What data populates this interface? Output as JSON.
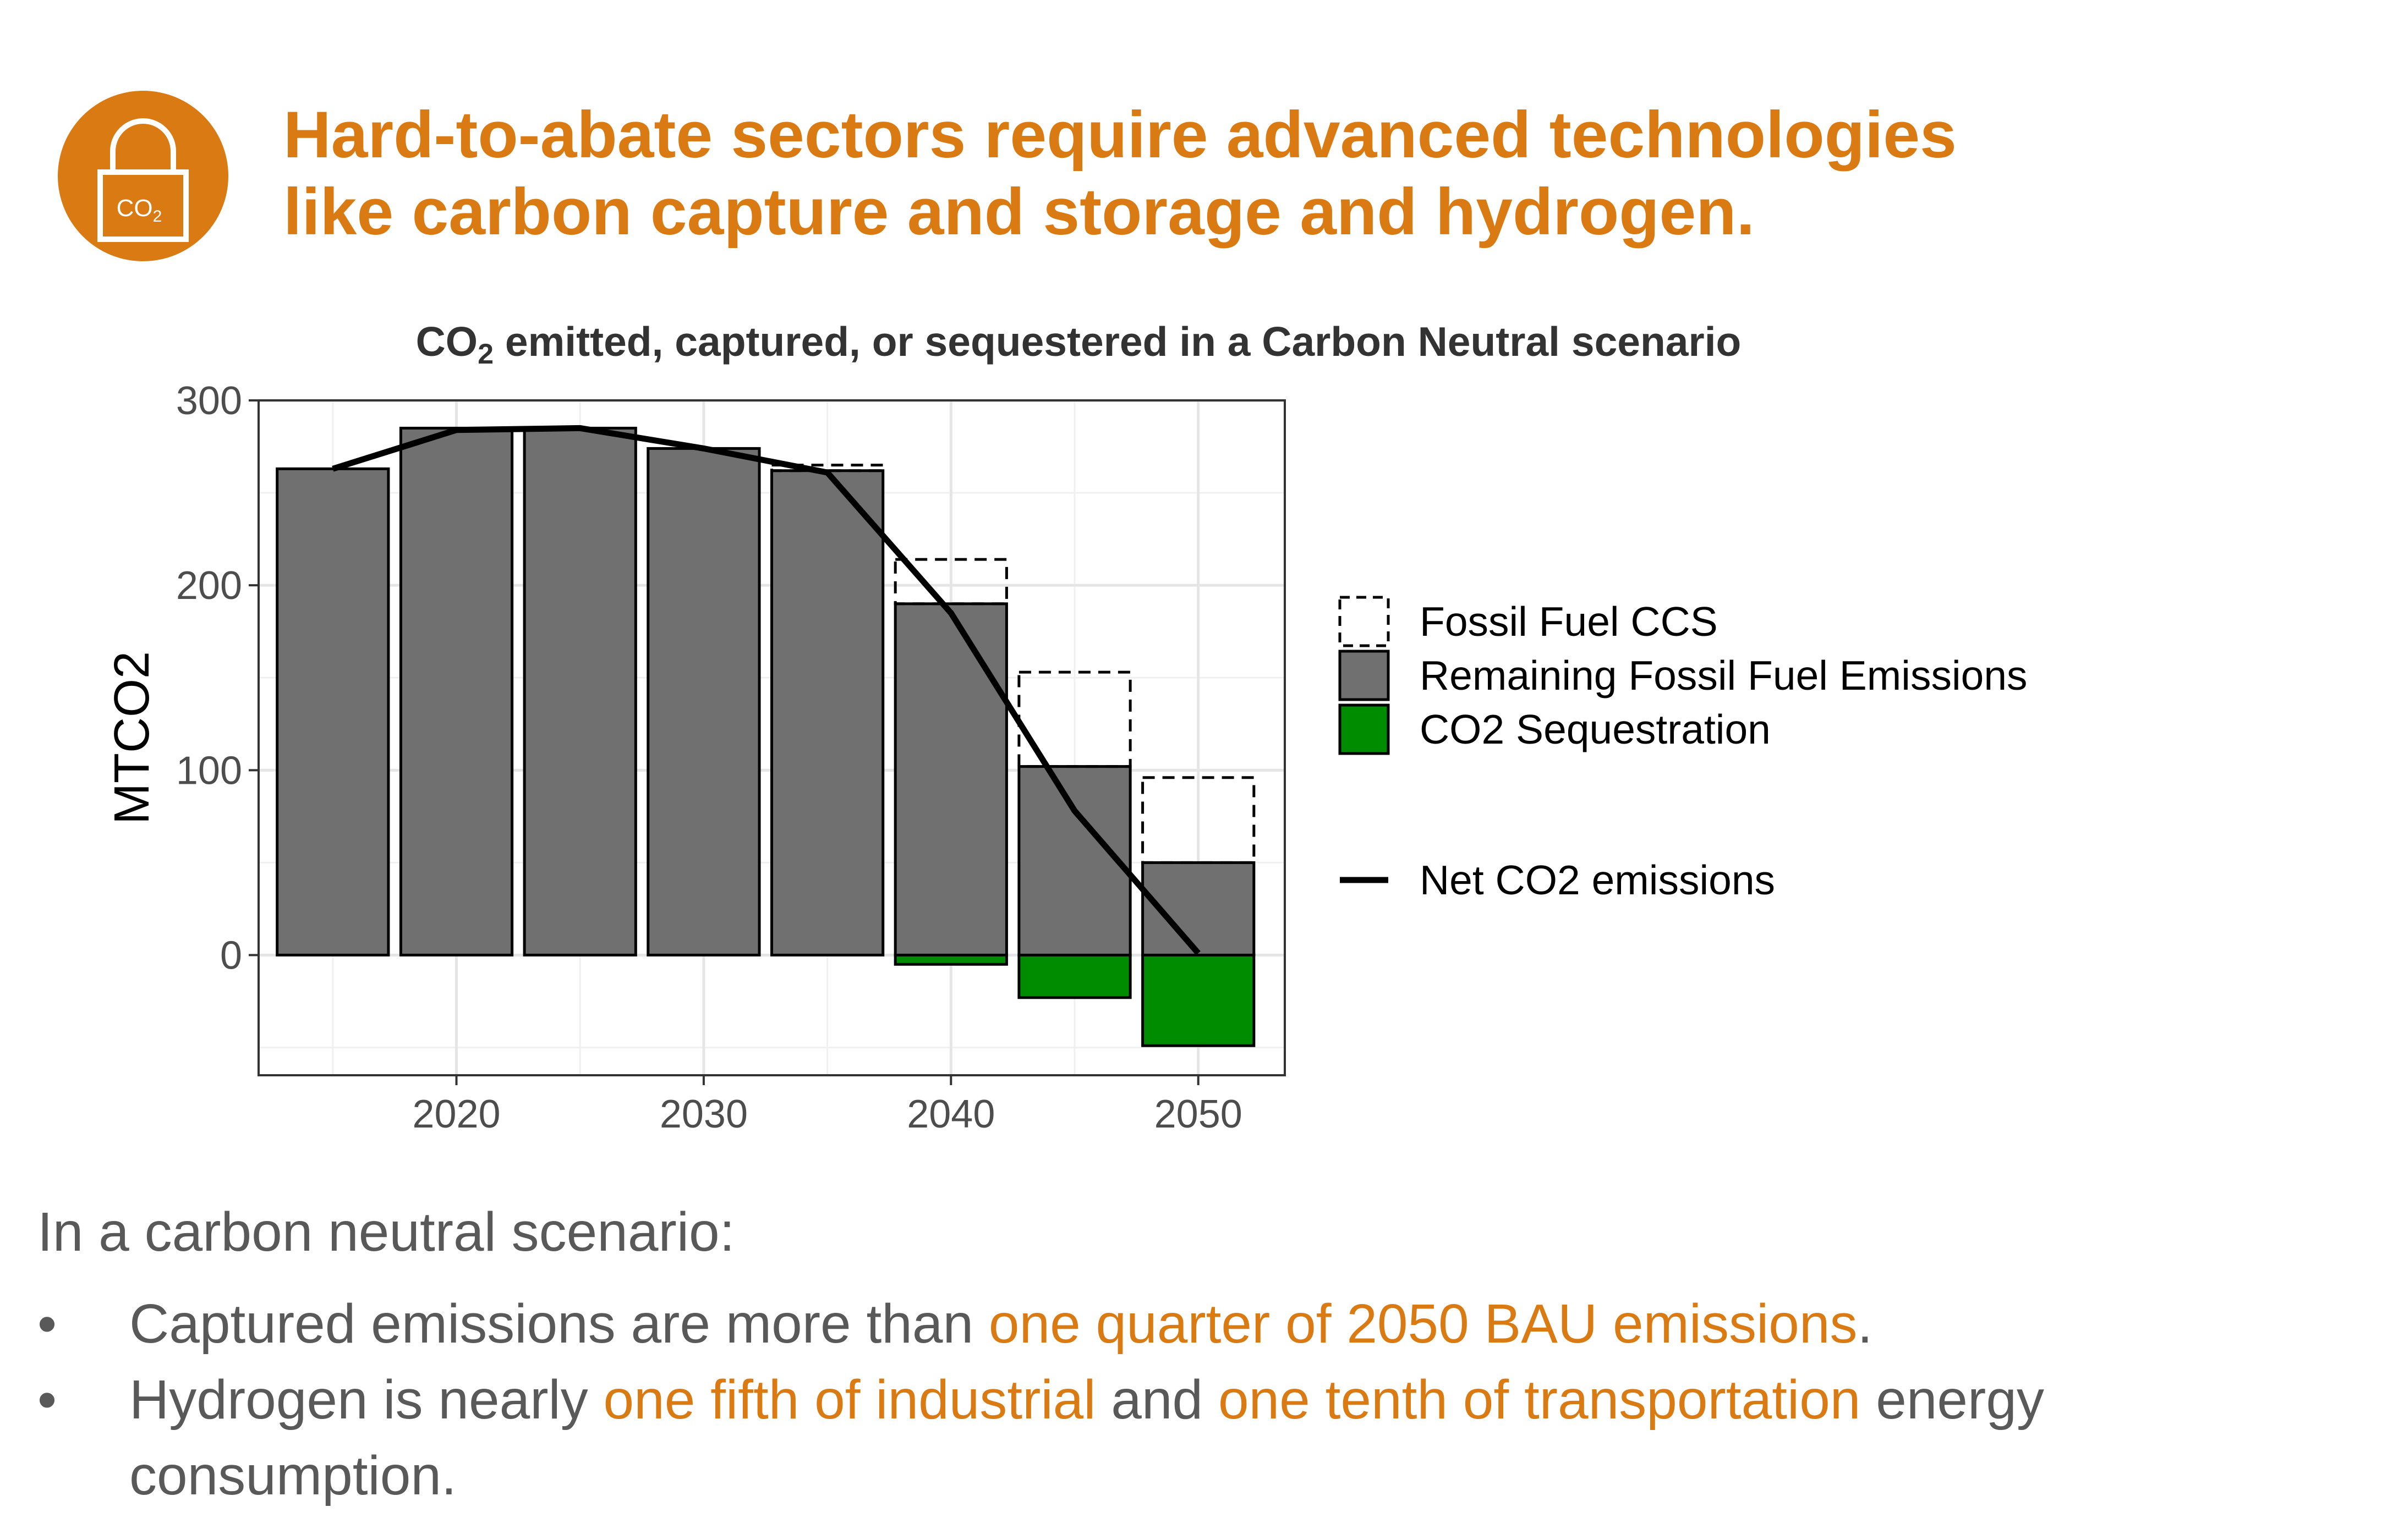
{
  "header": {
    "icon": "lock-co2-icon",
    "icon_label": "CO2",
    "title_lines": [
      "Hard-to-abate sectors require advanced technologies",
      "like carbon capture and storage and hydrogen."
    ]
  },
  "colors": {
    "accent": "#D97A12",
    "bar_remaining": "#707070",
    "bar_sequestration": "#008C00",
    "line": "#000000",
    "body_text": "#595959"
  },
  "chart_data": {
    "type": "bar",
    "title_main": "CO",
    "title_sub": "2",
    "title_rest": " emitted, captured, or sequestered in a Carbon Neutral scenario",
    "xlabel": "",
    "ylabel": "MTCO2",
    "x": [
      2015,
      2020,
      2025,
      2030,
      2035,
      2040,
      2045,
      2050
    ],
    "xlim": [
      2012,
      2053.5
    ],
    "ylim": [
      -65,
      300
    ],
    "xticks": [
      2020,
      2030,
      2040,
      2050
    ],
    "yticks": [
      0,
      100,
      200,
      300
    ],
    "grid": true,
    "legend_position": "right",
    "series": [
      {
        "name": "Fossil Fuel CCS",
        "style": "dashed-outline",
        "values": [
          0,
          0,
          0,
          0,
          3,
          24,
          51,
          46
        ]
      },
      {
        "name": "Remaining Fossil Fuel Emissions",
        "style": "fill",
        "values": [
          263,
          285,
          285,
          274,
          262,
          190,
          102,
          50
        ]
      },
      {
        "name": "CO2 Sequestration",
        "style": "fill",
        "values": [
          0,
          0,
          0,
          0,
          0,
          -5,
          -23,
          -49
        ]
      },
      {
        "name": "Net CO2 emissions",
        "style": "line",
        "values": [
          263,
          284,
          285,
          274,
          261,
          185,
          78,
          1
        ]
      }
    ]
  },
  "body": {
    "intro": "In a carbon neutral scenario:",
    "bullet_char": "•",
    "bullets": [
      {
        "p1": "Captured emissions are more than ",
        "h1": "one quarter of 2050 BAU emissions",
        "p2": "."
      },
      {
        "p1": "Hydrogen is nearly ",
        "h1": "one fifth of industrial",
        "p2": " and ",
        "h2": "one tenth of transportation",
        "p3": " energy consumption."
      }
    ]
  }
}
